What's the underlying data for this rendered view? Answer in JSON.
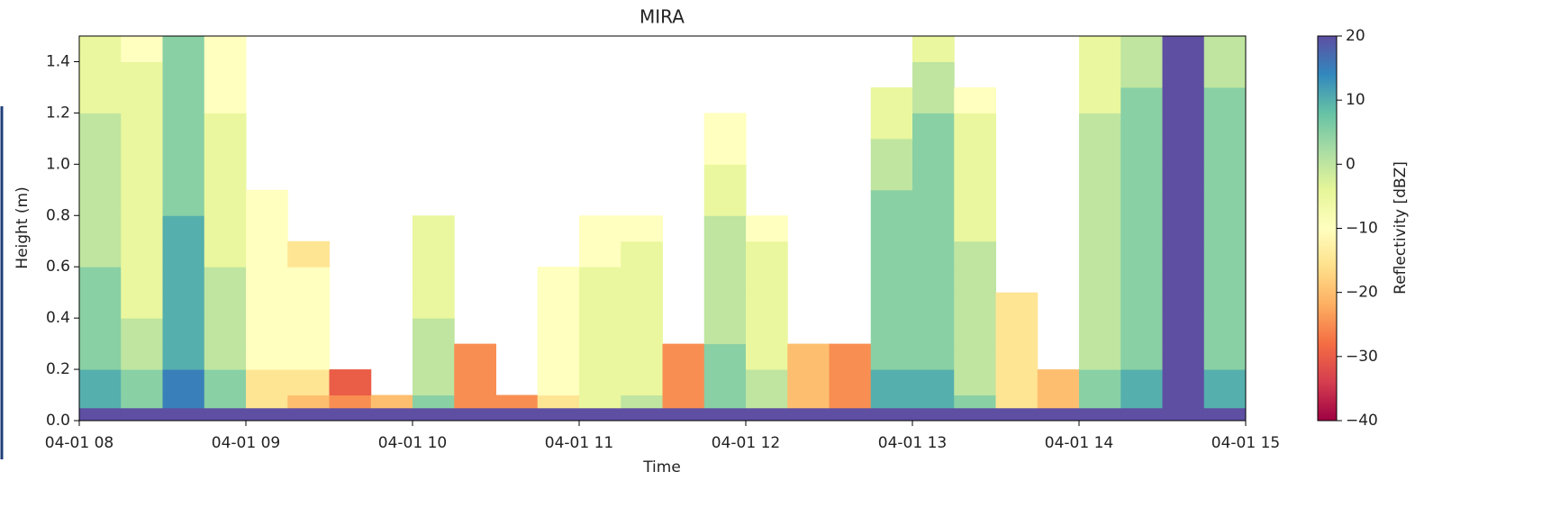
{
  "chart_data": {
    "type": "heatmap",
    "title": "MIRA",
    "x_label": "Time",
    "y_label": "Height (m)",
    "x_edges": [
      8,
      8.25,
      8.5,
      8.75,
      9,
      9.25,
      9.5,
      9.75,
      10,
      10.25,
      10.5,
      10.75,
      11,
      11.25,
      11.5,
      11.75,
      12,
      12.25,
      12.5,
      12.75,
      13,
      13.25,
      13.5,
      13.75,
      14,
      14.25,
      14.5,
      14.75,
      15
    ],
    "y_edges": [
      0,
      0.05,
      0.1,
      0.2,
      0.3,
      0.4,
      0.5,
      0.6,
      0.7,
      0.8,
      0.9,
      1.0,
      1.1,
      1.2,
      1.3,
      1.4,
      1.5
    ],
    "z": [
      [
        20,
        20,
        20,
        20,
        20,
        20,
        20,
        20,
        20,
        20,
        20,
        20,
        20,
        20,
        20,
        20,
        20,
        20,
        20,
        20,
        20,
        20,
        20,
        20,
        20,
        20,
        20,
        20
      ],
      [
        10,
        5,
        15,
        5,
        -15,
        -20,
        -25,
        -20,
        5,
        -25,
        -25,
        -15,
        -5,
        0,
        -25,
        5,
        0,
        -20,
        -25,
        10,
        10,
        5,
        -15,
        -20,
        5,
        10,
        20,
        10
      ],
      [
        10,
        5,
        15,
        5,
        -15,
        -15,
        -30,
        null,
        0,
        -25,
        null,
        -10,
        -5,
        -5,
        -25,
        5,
        0,
        -20,
        -25,
        10,
        10,
        0,
        -15,
        -20,
        5,
        10,
        20,
        10
      ],
      [
        5,
        0,
        10,
        0,
        -10,
        -10,
        null,
        null,
        0,
        -25,
        null,
        -10,
        -5,
        -5,
        -25,
        5,
        -5,
        -20,
        -25,
        5,
        5,
        0,
        -15,
        null,
        0,
        5,
        20,
        5
      ],
      [
        5,
        0,
        10,
        0,
        -10,
        -10,
        null,
        null,
        0,
        null,
        null,
        -10,
        -5,
        -5,
        null,
        0,
        -5,
        null,
        null,
        5,
        5,
        0,
        -15,
        null,
        0,
        5,
        20,
        5
      ],
      [
        5,
        -5,
        10,
        0,
        -10,
        -10,
        null,
        null,
        -5,
        null,
        null,
        -10,
        -5,
        -5,
        null,
        0,
        -5,
        null,
        null,
        5,
        5,
        0,
        -15,
        null,
        0,
        5,
        20,
        5
      ],
      [
        5,
        -5,
        10,
        0,
        -10,
        -10,
        null,
        null,
        -5,
        null,
        null,
        -10,
        -5,
        -5,
        null,
        0,
        -5,
        null,
        null,
        5,
        5,
        0,
        null,
        null,
        0,
        5,
        20,
        5
      ],
      [
        0,
        -5,
        10,
        -5,
        -10,
        -15,
        null,
        null,
        -5,
        null,
        null,
        null,
        -10,
        -5,
        null,
        0,
        -5,
        null,
        null,
        5,
        5,
        0,
        null,
        null,
        0,
        5,
        20,
        5
      ],
      [
        0,
        -5,
        10,
        -5,
        -10,
        null,
        null,
        null,
        -5,
        null,
        null,
        null,
        -10,
        -10,
        null,
        0,
        -10,
        null,
        null,
        5,
        5,
        -5,
        null,
        null,
        0,
        5,
        20,
        5
      ],
      [
        0,
        -5,
        5,
        -5,
        -10,
        null,
        null,
        null,
        null,
        null,
        null,
        null,
        null,
        null,
        null,
        -5,
        null,
        null,
        null,
        5,
        5,
        -5,
        null,
        null,
        0,
        5,
        20,
        5
      ],
      [
        0,
        -5,
        5,
        -5,
        null,
        null,
        null,
        null,
        null,
        null,
        null,
        null,
        null,
        null,
        null,
        -5,
        null,
        null,
        null,
        0,
        5,
        -5,
        null,
        null,
        0,
        5,
        20,
        5
      ],
      [
        0,
        -5,
        5,
        -5,
        null,
        null,
        null,
        null,
        null,
        null,
        null,
        null,
        null,
        null,
        null,
        -10,
        null,
        null,
        null,
        0,
        5,
        -5,
        null,
        null,
        0,
        5,
        20,
        5
      ],
      [
        0,
        -5,
        5,
        -5,
        null,
        null,
        null,
        null,
        null,
        null,
        null,
        null,
        null,
        null,
        null,
        -10,
        null,
        null,
        null,
        -5,
        5,
        -5,
        null,
        null,
        0,
        5,
        20,
        5
      ],
      [
        -5,
        -5,
        5,
        -10,
        null,
        null,
        null,
        null,
        null,
        null,
        null,
        null,
        null,
        null,
        null,
        null,
        null,
        null,
        null,
        -5,
        0,
        -10,
        null,
        null,
        -5,
        5,
        20,
        5
      ],
      [
        -5,
        -5,
        5,
        -10,
        null,
        null,
        null,
        null,
        null,
        null,
        null,
        null,
        null,
        null,
        null,
        null,
        null,
        null,
        null,
        null,
        0,
        null,
        null,
        null,
        -5,
        0,
        20,
        0
      ],
      [
        -5,
        -10,
        5,
        -10,
        null,
        null,
        null,
        null,
        null,
        null,
        null,
        null,
        null,
        null,
        null,
        null,
        null,
        null,
        null,
        null,
        -5,
        null,
        null,
        null,
        -5,
        0,
        20,
        0
      ]
    ],
    "xlim": [
      8,
      15
    ],
    "xticks": [
      {
        "value": 8,
        "label": "04-01 08"
      },
      {
        "value": 9,
        "label": "04-01 09"
      },
      {
        "value": 10,
        "label": "04-01 10"
      },
      {
        "value": 11,
        "label": "04-01 11"
      },
      {
        "value": 12,
        "label": "04-01 12"
      },
      {
        "value": 13,
        "label": "04-01 13"
      },
      {
        "value": 14,
        "label": "04-01 14"
      },
      {
        "value": 15,
        "label": "04-01 15"
      }
    ],
    "ylim": [
      0,
      1.5
    ],
    "yticks": [
      {
        "value": 0,
        "label": "0.0"
      },
      0.2,
      0.4,
      0.6,
      0.8,
      {
        "value": 1,
        "label": "1.0"
      },
      1.2,
      1.4
    ],
    "colorbar": {
      "label": "Reflectivity [dBZ]",
      "colormap": "Spectral",
      "lim": [
        -40,
        20
      ],
      "ticks": [
        {
          "value": -40,
          "label": "−40"
        },
        {
          "value": -30,
          "label": "−30"
        },
        {
          "value": -20,
          "label": "−20"
        },
        {
          "value": -10,
          "label": "−10"
        },
        0,
        10,
        20
      ]
    }
  }
}
